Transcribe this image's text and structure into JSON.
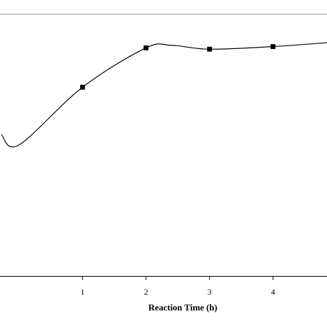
{
  "chart_data": {
    "type": "line",
    "title": "",
    "xlabel": "Reaction Time (h)",
    "ylabel": "",
    "x_ticks": [
      1,
      2,
      3,
      4
    ],
    "xlim": [
      -0.3,
      4.85
    ],
    "ylim": [
      0,
      100
    ],
    "grid": false,
    "smooth": true,
    "series": [
      {
        "points": [
          {
            "x": -0.28,
            "y": 54
          },
          {
            "x": 0,
            "y": 50
          },
          {
            "x": 1,
            "y": 72
          },
          {
            "x": 2,
            "y": 87
          },
          {
            "x": 2.4,
            "y": 88
          },
          {
            "x": 3,
            "y": 86.5
          },
          {
            "x": 4,
            "y": 87.5
          },
          {
            "x": 4.85,
            "y": 89
          }
        ],
        "markers": [
          {
            "x": 1,
            "y": 72
          },
          {
            "x": 2,
            "y": 87
          },
          {
            "x": 3,
            "y": 86.5
          },
          {
            "x": 4,
            "y": 87.5
          }
        ],
        "color": "#000000"
      }
    ]
  }
}
